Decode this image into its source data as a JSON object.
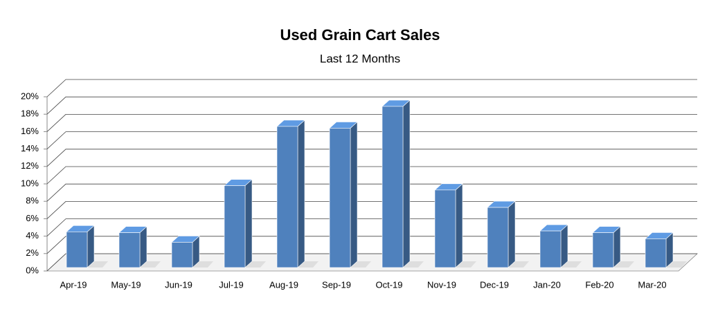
{
  "chart_data": {
    "type": "bar3d",
    "title": "Used Grain Cart Sales",
    "subtitle": "Last 12 Months",
    "categories": [
      "Apr-19",
      "May-19",
      "Jun-19",
      "Jul-19",
      "Aug-19",
      "Sep-19",
      "Oct-19",
      "Nov-19",
      "Dec-19",
      "Jan-20",
      "Feb-20",
      "Mar-20"
    ],
    "values": [
      4.1,
      4.0,
      2.9,
      9.4,
      16.2,
      16.0,
      18.5,
      8.9,
      6.9,
      4.2,
      4.0,
      3.3
    ],
    "color": "#4f81bd",
    "ylim": [
      0,
      20
    ],
    "yticks": [
      {
        "value": 0,
        "label": "0%"
      },
      {
        "value": 2,
        "label": "2%"
      },
      {
        "value": 4,
        "label": "4%"
      },
      {
        "value": 6,
        "label": "6%"
      },
      {
        "value": 8,
        "label": "8%"
      },
      {
        "value": 10,
        "label": "10%"
      },
      {
        "value": 12,
        "label": "12%"
      },
      {
        "value": 14,
        "label": "14%"
      },
      {
        "value": 16,
        "label": "16%"
      },
      {
        "value": 18,
        "label": "18%"
      },
      {
        "value": 20,
        "label": "20%"
      }
    ],
    "grid": true
  }
}
